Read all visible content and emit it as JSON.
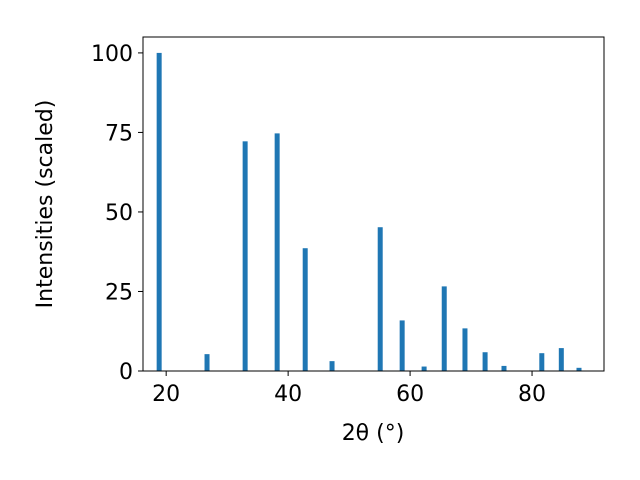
{
  "chart_data": {
    "type": "bar",
    "x": [
      18.85,
      26.7,
      32.95,
      38.2,
      42.8,
      47.2,
      55.1,
      58.7,
      62.3,
      65.6,
      69.0,
      72.3,
      75.4,
      81.6,
      84.8,
      87.7
    ],
    "values": [
      100,
      5.3,
      72.2,
      74.7,
      38.6,
      3.1,
      45.2,
      15.9,
      1.4,
      26.6,
      13.4,
      5.9,
      1.6,
      5.6,
      7.2,
      1.0
    ],
    "color": "#1f77b4",
    "xlabel": "2θ (°)",
    "ylabel": "Intensities (scaled)",
    "xlim": [
      16.2,
      91.8
    ],
    "xticks": [
      20,
      40,
      60,
      80
    ],
    "ylim": [
      0,
      105
    ],
    "yticks": [
      0,
      25,
      50,
      75,
      100
    ]
  }
}
